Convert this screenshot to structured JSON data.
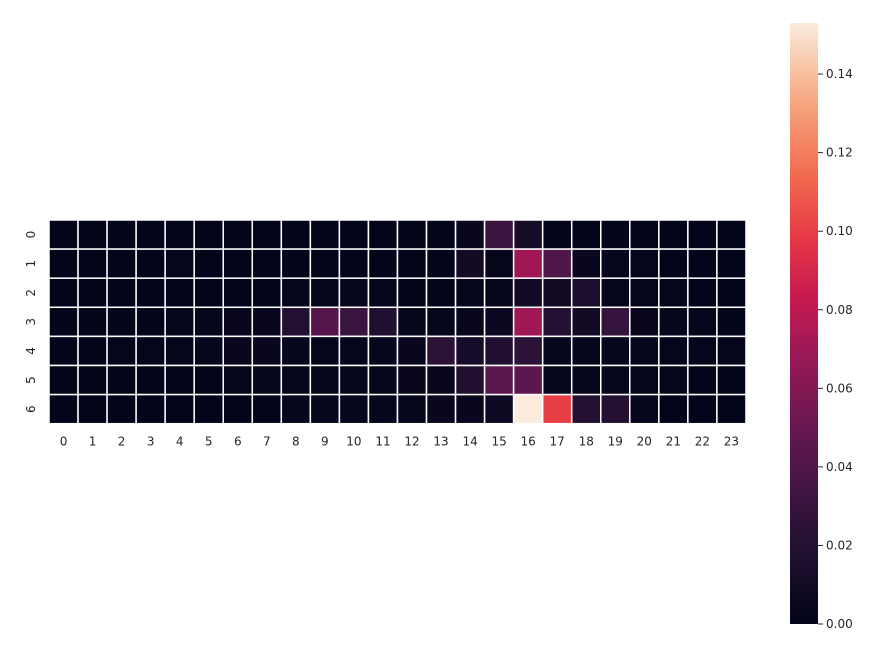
{
  "chart_data": {
    "type": "heatmap",
    "title": "",
    "xlabel": "",
    "ylabel": "",
    "x_categories": [
      "0",
      "1",
      "2",
      "3",
      "4",
      "5",
      "6",
      "7",
      "8",
      "9",
      "10",
      "11",
      "12",
      "13",
      "14",
      "15",
      "16",
      "17",
      "18",
      "19",
      "20",
      "21",
      "22",
      "23"
    ],
    "y_categories": [
      "0",
      "1",
      "2",
      "3",
      "4",
      "5",
      "6"
    ],
    "values": [
      [
        0,
        0,
        0,
        0,
        0,
        0,
        0,
        0,
        0,
        0,
        0,
        0,
        0,
        0,
        0.003,
        0.03,
        0.012,
        0,
        0,
        0,
        0,
        0,
        0,
        0
      ],
      [
        0,
        0,
        0,
        0,
        0.001,
        0,
        0,
        0,
        0,
        0,
        0,
        0,
        0,
        0,
        0.01,
        0.001,
        0.07,
        0.04,
        0.004,
        0.002,
        0.001,
        0,
        0,
        0
      ],
      [
        0,
        0,
        0,
        0,
        0,
        0,
        0,
        0,
        0.002,
        0.002,
        0.001,
        0.001,
        0,
        0,
        0.002,
        0.002,
        0.01,
        0.01,
        0.015,
        0.002,
        0.001,
        0.001,
        0,
        0
      ],
      [
        0,
        0,
        0,
        0,
        0.001,
        0.002,
        0.003,
        0.004,
        0.02,
        0.043,
        0.03,
        0.018,
        0.002,
        0.002,
        0.003,
        0.006,
        0.07,
        0.02,
        0.01,
        0.028,
        0.003,
        0.002,
        0.001,
        0
      ],
      [
        0,
        0,
        0.001,
        0.001,
        0.001,
        0.002,
        0.003,
        0.004,
        0.002,
        0.001,
        0.001,
        0.002,
        0.004,
        0.025,
        0.012,
        0.018,
        0.025,
        0.002,
        0.002,
        0.002,
        0.002,
        0.001,
        0.001,
        0.001
      ],
      [
        0,
        0,
        0,
        0,
        0,
        0,
        0.001,
        0.002,
        0.002,
        0.002,
        0.002,
        0.002,
        0.003,
        0.004,
        0.018,
        0.045,
        0.045,
        0.002,
        0.002,
        0.002,
        0.001,
        0.001,
        0,
        0
      ],
      [
        0,
        0,
        0,
        0,
        0,
        0,
        0,
        0,
        0.002,
        0.002,
        0.002,
        0.002,
        0.002,
        0.003,
        0.004,
        0.007,
        0.153,
        0.1,
        0.02,
        0.02,
        0.001,
        0,
        0,
        0
      ]
    ],
    "vmin": 0,
    "vmax": 0.153,
    "colorbar": {
      "ticks": [
        0,
        0.02,
        0.04,
        0.06,
        0.08,
        0.1,
        0.12,
        0.14
      ],
      "tick_labels": [
        "0.00",
        "0.02",
        "0.04",
        "0.06",
        "0.08",
        "0.10",
        "0.12",
        "0.14"
      ],
      "placement": "right"
    },
    "colormap": "rocket",
    "cell_border_color": "#ffffff",
    "grid": false
  }
}
